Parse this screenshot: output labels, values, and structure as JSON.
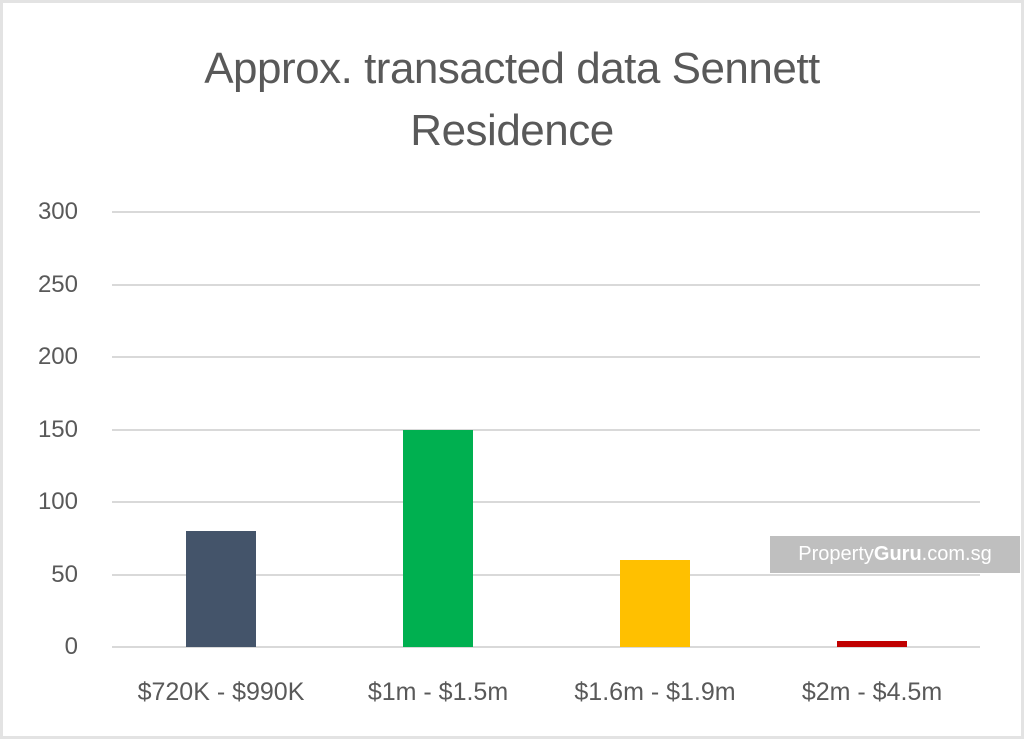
{
  "chart_data": {
    "type": "bar",
    "title": "Approx. transacted data Sennett Residence",
    "title_lines": [
      "Approx. transacted data Sennett",
      "Residence"
    ],
    "xlabel": "",
    "ylabel": "",
    "categories": [
      "$720K - $990K",
      "$1m - $1.5m",
      "$1.6m - $1.9m",
      "$2m - $4.5m"
    ],
    "values": [
      80,
      150,
      60,
      4
    ],
    "colors": [
      "#44546a",
      "#00b050",
      "#ffc000",
      "#c00000"
    ],
    "ylim": [
      0,
      300
    ],
    "yticks": [
      "0",
      "50",
      "100",
      "150",
      "200",
      "250",
      "300"
    ],
    "grid": true,
    "legend": "none"
  },
  "watermark": {
    "prefix": "Property",
    "bold": "Guru",
    "suffix": ".com.sg"
  }
}
